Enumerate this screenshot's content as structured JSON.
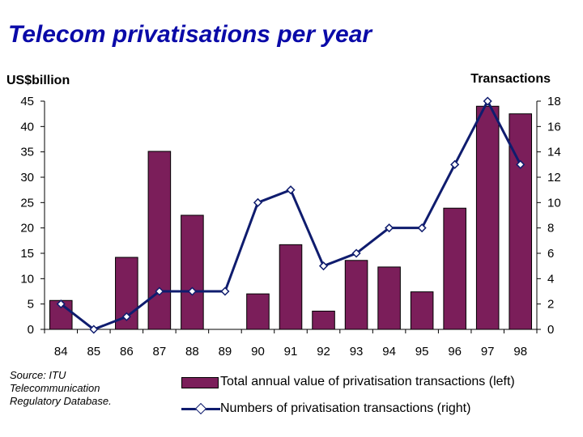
{
  "title": "Telecom privatisations per year",
  "source": "Source: ITU Telecommunication Regulatory Database.",
  "colors": {
    "bar": "#7b1e5a",
    "line": "#0f1c6e",
    "title": "#0a0aa8"
  },
  "chart_data": {
    "type": "bar",
    "categories": [
      "84",
      "85",
      "86",
      "87",
      "88",
      "89",
      "90",
      "91",
      "92",
      "93",
      "94",
      "95",
      "96",
      "97",
      "98"
    ],
    "series": [
      {
        "name": "Total annual value of privatisation transactions (left)",
        "type": "bar",
        "axis": "left",
        "values": [
          5.7,
          0,
          14.2,
          35.1,
          22.5,
          0,
          7.0,
          16.7,
          3.6,
          13.6,
          12.3,
          7.4,
          23.9,
          44.0,
          42.5
        ]
      },
      {
        "name": "Numbers of privatisation transactions (right)",
        "type": "line",
        "axis": "right",
        "values": [
          2,
          0,
          1,
          3,
          3,
          3,
          10,
          11,
          5,
          6,
          8,
          8,
          13,
          18,
          13
        ]
      }
    ],
    "ylabel": "US$billion",
    "ylabel_right": "Transactions",
    "xlabel": "",
    "ylim": [
      0,
      45
    ],
    "ylim_right": [
      0,
      18
    ],
    "yticks": [
      "0",
      "5",
      "10",
      "15",
      "20",
      "25",
      "30",
      "35",
      "40",
      "45"
    ],
    "yticks_right": [
      "0",
      "2",
      "4",
      "6",
      "8",
      "10",
      "12",
      "14",
      "16",
      "18"
    ],
    "grid": false,
    "legend_position": "bottom"
  }
}
